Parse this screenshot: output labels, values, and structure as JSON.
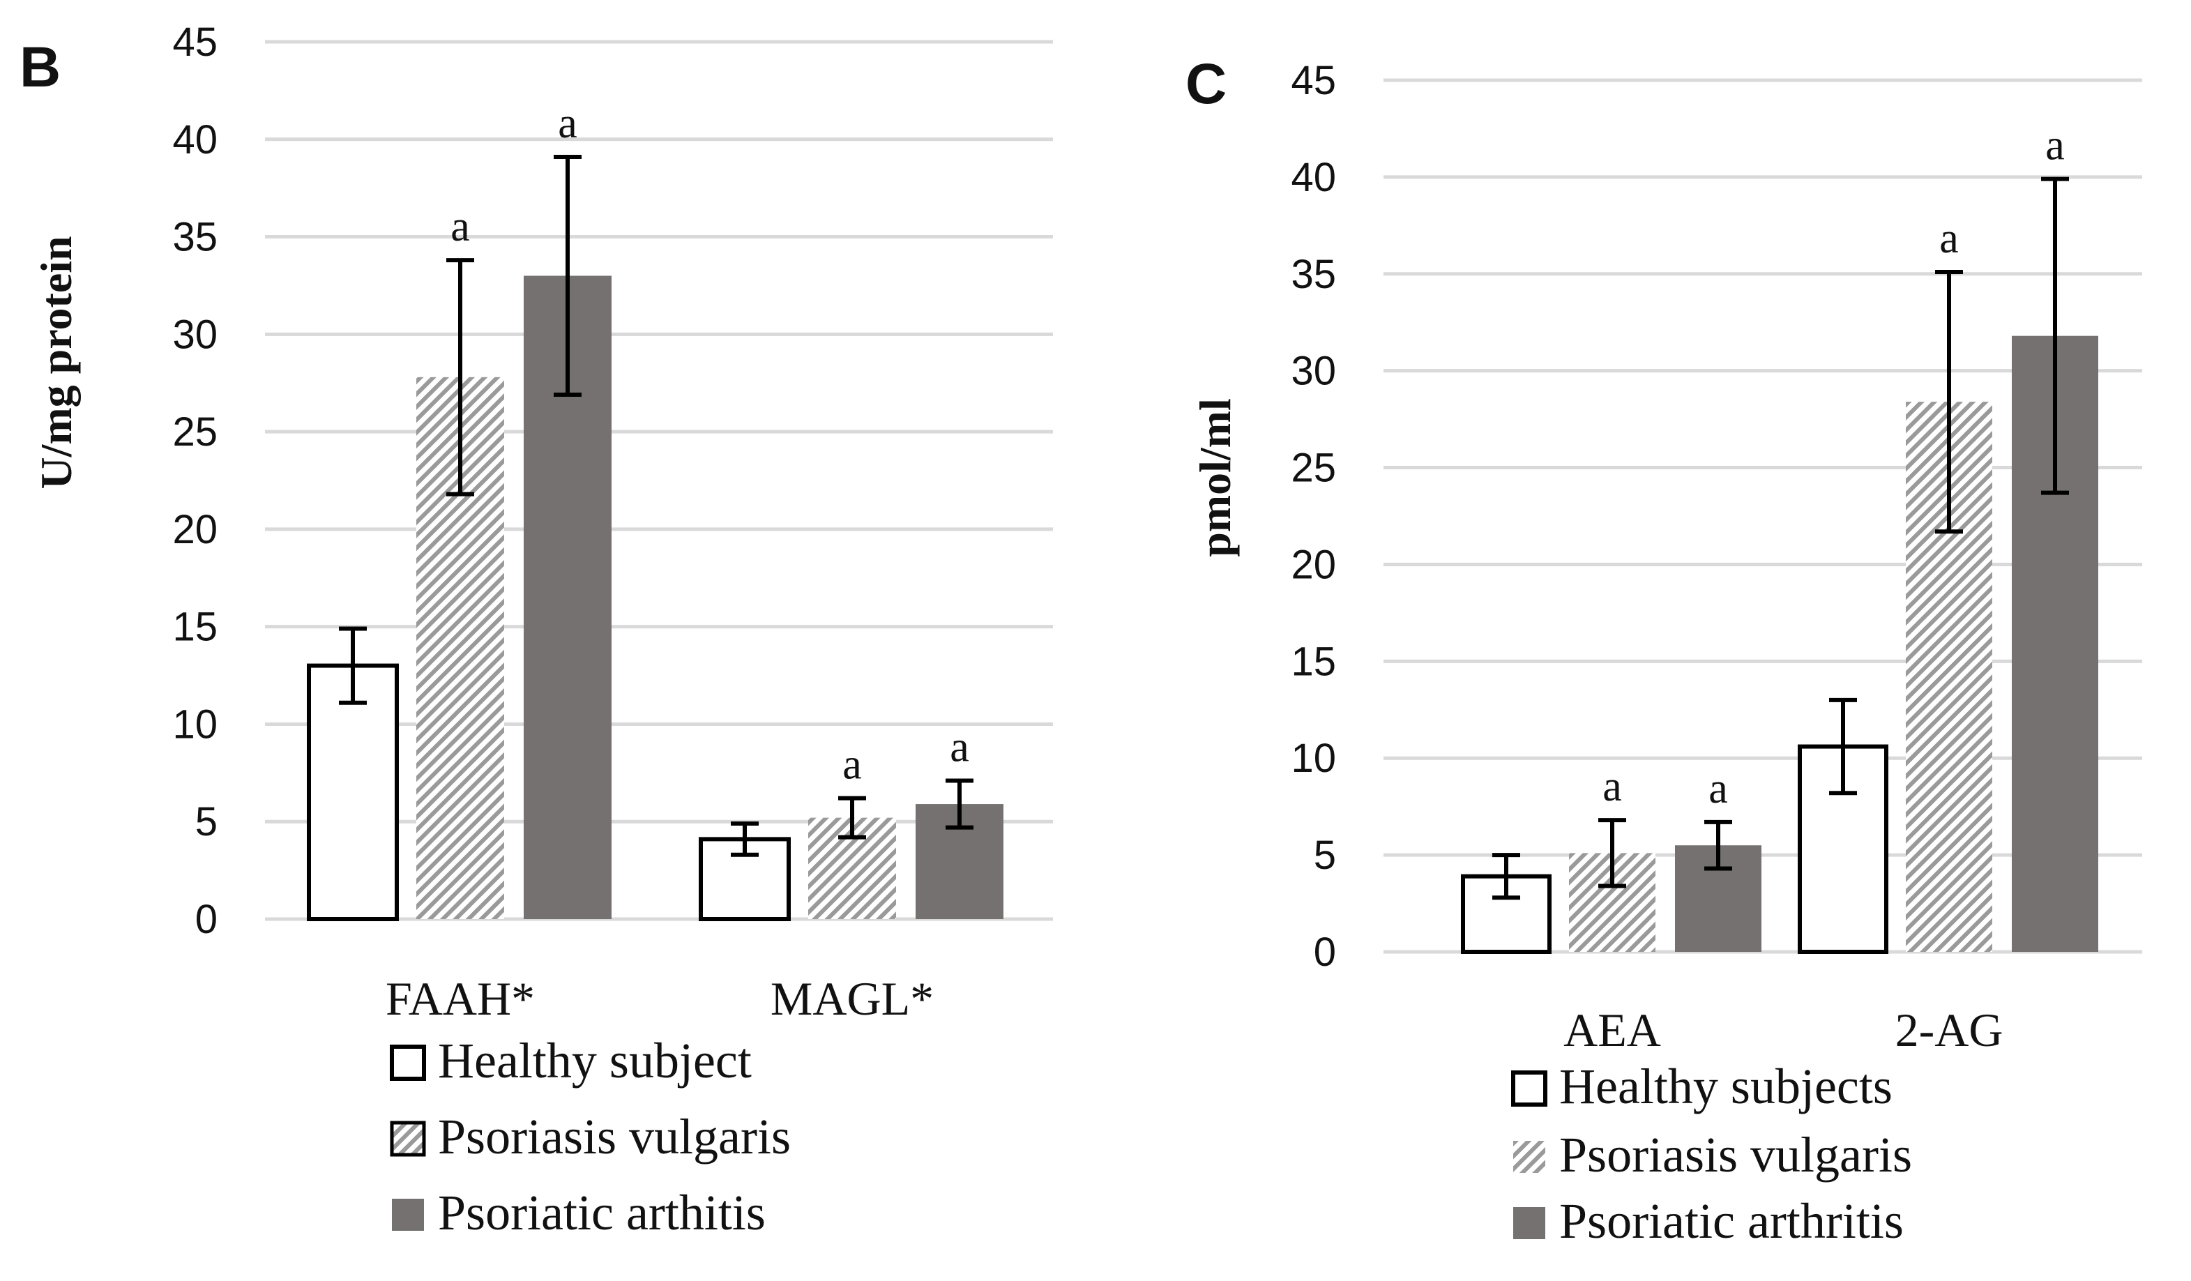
{
  "colors": {
    "healthy_fill": "#ffffff",
    "bar_stroke": "#000000",
    "psoriasis_stripe_a": "#9a9a9a",
    "psoriasis_stripe_b": "#ffffff",
    "arthritis_fill": "#767171",
    "gridline": "#d9d9d9",
    "error_bar": "#000000"
  },
  "chart_data": [
    {
      "panel": "B",
      "type": "bar",
      "title": "",
      "xlabel": "",
      "ylabel": "U/mg protein",
      "ylim": [
        0,
        45
      ],
      "yticks": [
        0,
        5,
        10,
        15,
        20,
        25,
        30,
        35,
        40,
        45
      ],
      "grid": true,
      "categories": [
        "FAAH*",
        "MAGL*"
      ],
      "series": [
        {
          "name": "Healthy subject",
          "style": "white",
          "values": [
            13.0,
            4.1
          ],
          "errors": [
            1.9,
            0.8
          ],
          "annotations": [
            "",
            ""
          ]
        },
        {
          "name": "Psoriasis vulgaris",
          "style": "hatched",
          "values": [
            27.8,
            5.2
          ],
          "errors": [
            6.0,
            1.0
          ],
          "annotations": [
            "a",
            "a"
          ]
        },
        {
          "name": "Psoriatic arthitis",
          "style": "gray",
          "values": [
            33.0,
            5.9
          ],
          "errors": [
            6.1,
            1.2
          ],
          "annotations": [
            "a",
            "a"
          ]
        }
      ],
      "legend": [
        "Healthy subject",
        "Psoriasis vulgaris",
        "Psoriatic arthitis"
      ],
      "legend_position": "bottom"
    },
    {
      "panel": "C",
      "type": "bar",
      "title": "",
      "xlabel": "",
      "ylabel": "pmol/ml",
      "ylim": [
        0,
        45
      ],
      "yticks": [
        0,
        5,
        10,
        15,
        20,
        25,
        30,
        35,
        40,
        45
      ],
      "grid": true,
      "categories": [
        "AEA",
        "2-AG"
      ],
      "series": [
        {
          "name": "Healthy subjects",
          "style": "white",
          "values": [
            3.9,
            10.6
          ],
          "errors": [
            1.1,
            2.4
          ],
          "annotations": [
            "",
            ""
          ]
        },
        {
          "name": "Psoriasis vulgaris",
          "style": "hatched",
          "values": [
            5.1,
            28.4
          ],
          "errors": [
            1.7,
            6.7
          ],
          "annotations": [
            "a",
            "a"
          ]
        },
        {
          "name": "Psoriatic arthritis",
          "style": "gray",
          "values": [
            5.5,
            31.8
          ],
          "errors": [
            1.2,
            8.1
          ],
          "annotations": [
            "a",
            "a"
          ]
        }
      ],
      "legend": [
        "Healthy subjects",
        "Psoriasis vulgaris",
        "Psoriatic arthritis"
      ],
      "legend_position": "bottom"
    }
  ]
}
